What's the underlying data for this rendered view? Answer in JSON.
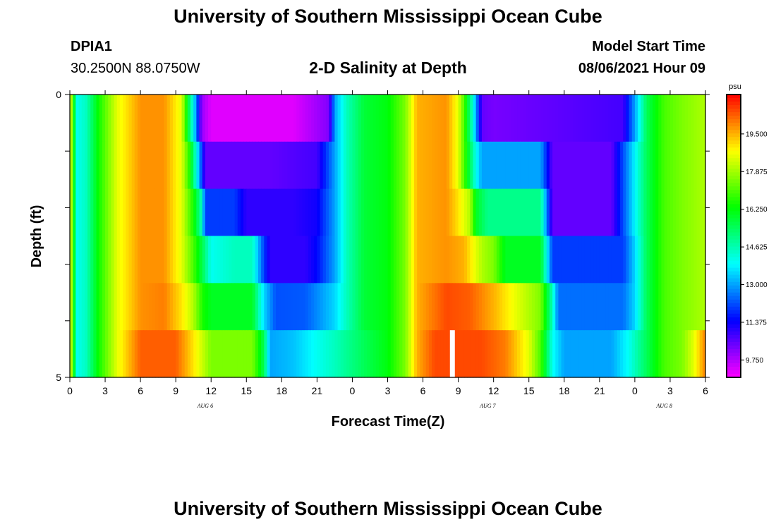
{
  "header": {
    "title": "University of Southern Mississippi Ocean Cube",
    "station": "DPIA1",
    "coordinates": "30.2500N  88.0750W",
    "subtitle": "2-D Salinity at Depth",
    "model_start_label": "Model Start Time",
    "model_start_value": "08/06/2021 Hour 09"
  },
  "footer": {
    "title": "University of Southern Mississippi Ocean Cube"
  },
  "chart_data": {
    "type": "heatmap",
    "title": "2-D Salinity at Depth",
    "xlabel": "Forecast Time(Z)",
    "ylabel": "Depth (ft)",
    "x_tick_labels": [
      "0",
      "3",
      "6",
      "9",
      "12",
      "15",
      "18",
      "21",
      "0",
      "3",
      "6",
      "9",
      "12",
      "15",
      "18",
      "21",
      "0",
      "3",
      "6"
    ],
    "x_start_hour": 0,
    "x_end_hour": 54,
    "date_labels": [
      {
        "text": "AUG 6",
        "hour": 11.5
      },
      {
        "text": "AUG 7",
        "hour": 35.5
      },
      {
        "text": "AUG 8",
        "hour": 50.5
      }
    ],
    "y_tick_labels": [
      "0",
      "5"
    ],
    "ylim": [
      0,
      5
    ],
    "colorbar": {
      "unit": "psu",
      "ticks": [
        "19.500",
        "17.875",
        "16.250",
        "14.625",
        "13.000",
        "11.375",
        "9.750"
      ],
      "range": [
        9.0,
        21.2
      ]
    },
    "depth_levels": [
      0,
      1,
      2,
      3,
      4,
      5
    ],
    "missing": [
      {
        "hour": 32.5,
        "depth_index": 5
      }
    ],
    "layers": [
      [
        [
          0,
          19.0
        ],
        [
          0.6,
          14.0
        ],
        [
          1.4,
          14.5
        ],
        [
          2.5,
          16.5
        ],
        [
          4,
          18.5
        ],
        [
          6,
          19.8
        ],
        [
          8,
          19.8
        ],
        [
          9.5,
          18.5
        ],
        [
          10,
          16.0
        ],
        [
          10.7,
          13.0
        ],
        [
          11.2,
          10.0
        ],
        [
          12,
          9.3
        ],
        [
          19,
          9.3
        ],
        [
          22,
          10.2
        ],
        [
          22.5,
          13.0
        ],
        [
          23.5,
          14.5
        ],
        [
          25,
          15.8
        ],
        [
          27,
          16.2
        ],
        [
          28.5,
          17.5
        ],
        [
          29.5,
          19.5
        ],
        [
          32,
          19.8
        ],
        [
          33,
          18.5
        ],
        [
          33.5,
          17.0
        ],
        [
          34.3,
          14.0
        ],
        [
          35,
          10.5
        ],
        [
          36,
          10.3
        ],
        [
          47,
          10.8
        ],
        [
          48,
          13.0
        ],
        [
          49,
          15.5
        ],
        [
          50.5,
          17.0
        ],
        [
          52,
          17.5
        ],
        [
          54,
          18.0
        ]
      ],
      [
        [
          0,
          19.0
        ],
        [
          0.6,
          14.0
        ],
        [
          1.4,
          14.5
        ],
        [
          2.5,
          16.5
        ],
        [
          4,
          18.5
        ],
        [
          6,
          19.8
        ],
        [
          8,
          19.8
        ],
        [
          9.5,
          18.5
        ],
        [
          10.2,
          16.5
        ],
        [
          11,
          13.0
        ],
        [
          11.5,
          10.5
        ],
        [
          17,
          10.5
        ],
        [
          21,
          10.8
        ],
        [
          22.5,
          13.0
        ],
        [
          23.5,
          14.5
        ],
        [
          25,
          15.8
        ],
        [
          27,
          16.2
        ],
        [
          28.5,
          17.5
        ],
        [
          29.5,
          19.5
        ],
        [
          32,
          19.8
        ],
        [
          33,
          18.5
        ],
        [
          33.5,
          17.0
        ],
        [
          34.5,
          14.0
        ],
        [
          35,
          13.0
        ],
        [
          40,
          13.0
        ],
        [
          41,
          10.5
        ],
        [
          46,
          10.5
        ],
        [
          47.5,
          13.0
        ],
        [
          49,
          15.5
        ],
        [
          50.5,
          17.0
        ],
        [
          52,
          17.5
        ],
        [
          54,
          18.0
        ]
      ],
      [
        [
          0,
          19.0
        ],
        [
          0.6,
          14.0
        ],
        [
          1.4,
          14.5
        ],
        [
          2.5,
          16.5
        ],
        [
          4,
          18.5
        ],
        [
          6,
          19.8
        ],
        [
          8,
          19.8
        ],
        [
          9.5,
          18.5
        ],
        [
          10.5,
          16.5
        ],
        [
          11.2,
          14.5
        ],
        [
          11.5,
          12.0
        ],
        [
          14,
          12.0
        ],
        [
          15,
          11.0
        ],
        [
          19,
          11.0
        ],
        [
          21,
          11.3
        ],
        [
          22.5,
          13.0
        ],
        [
          23.5,
          14.5
        ],
        [
          25,
          15.8
        ],
        [
          27,
          16.2
        ],
        [
          28.5,
          17.5
        ],
        [
          29.5,
          19.5
        ],
        [
          32,
          19.8
        ],
        [
          33,
          19.0
        ],
        [
          34,
          18.0
        ],
        [
          34.5,
          16.0
        ],
        [
          35.5,
          15.0
        ],
        [
          40,
          15.0
        ],
        [
          41,
          10.5
        ],
        [
          46,
          10.5
        ],
        [
          47.5,
          13.0
        ],
        [
          49,
          15.5
        ],
        [
          50.5,
          17.0
        ],
        [
          52,
          17.5
        ],
        [
          54,
          18.0
        ]
      ],
      [
        [
          0,
          19.0
        ],
        [
          0.6,
          14.0
        ],
        [
          1.4,
          14.5
        ],
        [
          2.5,
          16.5
        ],
        [
          4,
          18.5
        ],
        [
          6,
          19.8
        ],
        [
          8,
          19.8
        ],
        [
          9.5,
          18.5
        ],
        [
          10.5,
          17.0
        ],
        [
          11.3,
          15.5
        ],
        [
          12,
          14.0
        ],
        [
          14,
          14.5
        ],
        [
          15.5,
          14.5
        ],
        [
          16.5,
          12.0
        ],
        [
          17,
          11.0
        ],
        [
          20,
          11.0
        ],
        [
          21,
          11.5
        ],
        [
          22.5,
          13.0
        ],
        [
          23.5,
          14.5
        ],
        [
          25,
          15.8
        ],
        [
          27,
          16.2
        ],
        [
          28.5,
          17.5
        ],
        [
          29.5,
          19.5
        ],
        [
          32,
          19.8
        ],
        [
          33.5,
          19.5
        ],
        [
          35,
          18.0
        ],
        [
          36,
          17.5
        ],
        [
          37,
          16.0
        ],
        [
          40,
          16.0
        ],
        [
          41,
          12.0
        ],
        [
          47,
          12.0
        ],
        [
          48,
          13.5
        ],
        [
          49,
          15.5
        ],
        [
          50.5,
          17.0
        ],
        [
          52,
          17.5
        ],
        [
          54,
          18.0
        ]
      ],
      [
        [
          0,
          19.0
        ],
        [
          0.6,
          14.0
        ],
        [
          1.4,
          14.5
        ],
        [
          2.5,
          16.5
        ],
        [
          4,
          18.5
        ],
        [
          6,
          19.8
        ],
        [
          8,
          20.0
        ],
        [
          9.5,
          19.0
        ],
        [
          10.5,
          18.0
        ],
        [
          11.3,
          16.5
        ],
        [
          12,
          16.0
        ],
        [
          15.5,
          16.0
        ],
        [
          16.5,
          13.5
        ],
        [
          17.5,
          12.2
        ],
        [
          20,
          12.3
        ],
        [
          21.5,
          13.0
        ],
        [
          22.5,
          13.5
        ],
        [
          23.5,
          14.5
        ],
        [
          25,
          15.8
        ],
        [
          27,
          16.2
        ],
        [
          28.5,
          17.5
        ],
        [
          29.5,
          19.5
        ],
        [
          32,
          20.5
        ],
        [
          34,
          20.3
        ],
        [
          36,
          19.5
        ],
        [
          38,
          18.5
        ],
        [
          40,
          17.5
        ],
        [
          41,
          14.5
        ],
        [
          41.5,
          12.5
        ],
        [
          47,
          12.5
        ],
        [
          48,
          13.5
        ],
        [
          49,
          15.5
        ],
        [
          50.5,
          17.0
        ],
        [
          52,
          17.5
        ],
        [
          54,
          18.0
        ]
      ],
      [
        [
          0,
          19.0
        ],
        [
          0.6,
          14.0
        ],
        [
          1.4,
          14.5
        ],
        [
          2.5,
          16.5
        ],
        [
          4,
          18.5
        ],
        [
          6,
          20.3
        ],
        [
          9,
          20.3
        ],
        [
          10.5,
          19.0
        ],
        [
          11.5,
          18.0
        ],
        [
          12,
          17.5
        ],
        [
          14,
          17.5
        ],
        [
          15.5,
          17.5
        ],
        [
          16.5,
          15.5
        ],
        [
          17,
          13.0
        ],
        [
          19,
          13.3
        ],
        [
          21,
          14.0
        ],
        [
          22.5,
          14.5
        ],
        [
          25,
          15.5
        ],
        [
          27,
          16.2
        ],
        [
          28.5,
          17.5
        ],
        [
          29.5,
          19.5
        ],
        [
          31,
          20.5
        ],
        [
          35,
          20.5
        ],
        [
          37,
          20.0
        ],
        [
          39,
          18.5
        ],
        [
          40,
          17.0
        ],
        [
          41,
          14.0
        ],
        [
          42,
          13.0
        ],
        [
          46,
          13.0
        ],
        [
          47.5,
          14.0
        ],
        [
          49,
          15.5
        ],
        [
          50.5,
          17.0
        ],
        [
          52,
          17.5
        ],
        [
          53,
          18.5
        ],
        [
          54,
          20.0
        ]
      ]
    ]
  }
}
